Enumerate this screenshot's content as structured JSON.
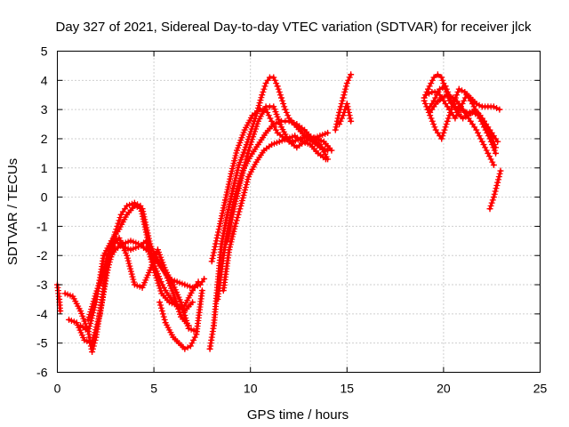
{
  "chart_data": {
    "type": "scatter",
    "title": "Day 327 of 2021, Sidereal Day-to-day VTEC variation (SDTVAR) for receiver jlck",
    "xlabel": "GPS time / hours",
    "ylabel": "SDTVAR / TECUs",
    "xlim": [
      0,
      25
    ],
    "ylim": [
      -6,
      5
    ],
    "xticks": [
      "0",
      "5",
      "10",
      "15",
      "20",
      "25"
    ],
    "yticks": [
      "-6",
      "-5",
      "-4",
      "-3",
      "-2",
      "-1",
      "0",
      "1",
      "2",
      "3",
      "4",
      "5"
    ],
    "grid": true,
    "marker": "plus",
    "color": "#ff0000",
    "series": [
      {
        "x": [
          0.0,
          0.1,
          0.15
        ],
        "y": [
          -3.0,
          -3.5,
          -3.9
        ]
      },
      {
        "x": [
          0.4,
          0.8,
          1.2,
          1.6,
          1.8,
          2.0,
          2.3,
          2.6,
          3.0,
          3.3,
          3.6,
          4.0,
          4.3,
          4.6,
          4.9,
          5.3,
          5.6,
          6.0,
          6.3,
          6.6,
          7.0,
          7.3
        ],
        "y": [
          -3.3,
          -3.4,
          -3.9,
          -4.6,
          -5.3,
          -4.8,
          -3.6,
          -2.2,
          -1.2,
          -0.6,
          -0.3,
          -0.2,
          -0.3,
          -1.2,
          -2.1,
          -2.8,
          -3.2,
          -3.6,
          -3.8,
          -3.7,
          -3.2,
          -2.9
        ]
      },
      {
        "x": [
          0.6,
          1.0,
          1.4,
          1.8,
          2.2,
          2.6,
          3.0,
          3.4,
          3.8,
          4.2,
          4.6,
          5.0,
          5.4,
          5.8,
          6.2,
          6.6,
          7.0
        ],
        "y": [
          -4.2,
          -4.3,
          -4.9,
          -5.0,
          -4.0,
          -2.5,
          -1.5,
          -1.7,
          -1.8,
          -1.7,
          -1.5,
          -2.5,
          -3.3,
          -3.6,
          -3.7,
          -3.9,
          -3.6
        ]
      },
      {
        "x": [
          1.2,
          1.6,
          2.0,
          2.4,
          2.8,
          3.2,
          3.6,
          4.0,
          4.4,
          4.8,
          5.2,
          5.6,
          6.0,
          6.4,
          6.8
        ],
        "y": [
          -4.4,
          -4.6,
          -3.6,
          -2.0,
          -1.5,
          -1.1,
          -0.6,
          -0.3,
          -0.4,
          -1.6,
          -2.2,
          -2.6,
          -3.3,
          -4.1,
          -4.4
        ]
      },
      {
        "x": [
          1.6,
          2.0,
          2.4,
          2.8,
          3.2,
          3.6,
          4.0,
          4.4,
          4.8,
          5.2,
          5.6,
          6.0,
          6.4,
          6.8,
          7.2
        ],
        "y": [
          -4.2,
          -3.3,
          -2.5,
          -1.6,
          -1.4,
          -2.0,
          -3.0,
          -3.1,
          -2.5,
          -1.8,
          -2.5,
          -3.0,
          -3.6,
          -4.5,
          -4.6
        ]
      },
      {
        "x": [
          2.2,
          2.6,
          3.0,
          3.4,
          3.8,
          4.2,
          4.6,
          5.0,
          5.4,
          5.8,
          6.2,
          6.6,
          7.0,
          7.4,
          7.6
        ],
        "y": [
          -3.0,
          -2.2,
          -1.8,
          -1.6,
          -1.5,
          -1.6,
          -1.8,
          -2.0,
          -2.4,
          -2.8,
          -2.9,
          -3.0,
          -3.1,
          -3.0,
          -2.8
        ]
      },
      {
        "x": [
          5.3,
          5.6,
          6.0,
          6.3,
          6.6,
          6.9,
          7.2,
          7.5
        ],
        "y": [
          -3.6,
          -4.3,
          -4.8,
          -5.0,
          -5.2,
          -5.1,
          -4.7,
          -3.2
        ]
      },
      {
        "x": [
          7.9,
          8.1,
          8.3,
          8.5,
          8.8,
          9.1,
          9.4,
          9.8,
          10.2,
          10.6,
          10.8,
          11.0,
          11.2,
          11.4,
          11.6,
          11.8,
          12.0,
          12.4,
          12.8,
          13.2,
          13.6,
          14.0
        ],
        "y": [
          -5.2,
          -4.4,
          -3.0,
          -1.6,
          -0.6,
          0.3,
          1.1,
          1.8,
          2.6,
          3.5,
          3.9,
          4.1,
          4.1,
          3.8,
          3.4,
          3.0,
          2.7,
          2.4,
          2.1,
          1.9,
          1.7,
          1.6
        ]
      },
      {
        "x": [
          8.0,
          8.2,
          8.4,
          8.7,
          9.0,
          9.3,
          9.7,
          10.1,
          10.5,
          10.8,
          11.1,
          11.4,
          11.8,
          12.2,
          12.6,
          13.0,
          13.4,
          13.8,
          14.2
        ],
        "y": [
          -2.2,
          -1.6,
          -1.0,
          -0.1,
          0.8,
          1.6,
          2.3,
          2.8,
          3.0,
          3.0,
          2.6,
          2.2,
          2.0,
          1.9,
          2.0,
          2.1,
          2.0,
          1.9,
          1.6
        ]
      },
      {
        "x": [
          8.3,
          8.6,
          8.9,
          9.2,
          9.6,
          10.0,
          10.4,
          10.8,
          11.2,
          11.6,
          12.0,
          12.4,
          12.8,
          13.2,
          13.6,
          14.0
        ],
        "y": [
          -3.5,
          -2.0,
          -0.9,
          0.0,
          0.9,
          1.4,
          1.8,
          2.2,
          2.5,
          2.6,
          2.6,
          2.5,
          2.3,
          2.0,
          1.8,
          1.3
        ]
      },
      {
        "x": [
          8.6,
          8.9,
          9.2,
          9.5,
          9.9,
          10.3,
          10.7,
          11.1,
          11.5,
          11.9,
          12.3,
          12.7,
          13.1,
          13.5,
          13.9
        ],
        "y": [
          -3.2,
          -1.8,
          -1.0,
          -0.3,
          0.7,
          1.2,
          1.6,
          1.8,
          1.9,
          2.0,
          2.1,
          1.9,
          1.8,
          1.5,
          1.3
        ]
      },
      {
        "x": [
          8.8,
          9.1,
          9.4,
          9.7,
          10.0,
          10.4,
          10.8,
          11.2,
          11.6,
          12.0,
          12.4,
          12.8,
          13.2,
          13.6,
          14.0
        ],
        "y": [
          -1.5,
          -0.5,
          0.3,
          1.1,
          1.8,
          2.6,
          3.1,
          3.1,
          2.4,
          1.9,
          1.7,
          1.9,
          2.0,
          2.1,
          2.2
        ]
      },
      {
        "x": [
          14.4,
          14.6,
          14.8,
          15.0,
          15.2
        ],
        "y": [
          2.3,
          2.9,
          3.4,
          3.9,
          4.2
        ]
      },
      {
        "x": [
          14.6,
          14.8,
          15.0,
          15.2
        ],
        "y": [
          2.5,
          2.8,
          3.2,
          2.6
        ]
      },
      {
        "x": [
          19.0,
          19.2,
          19.5,
          19.7,
          19.9,
          20.1,
          20.3,
          20.6,
          20.9,
          21.2,
          21.5,
          21.8,
          22.1,
          22.4,
          22.7
        ],
        "y": [
          3.4,
          3.7,
          4.1,
          4.2,
          4.1,
          3.7,
          3.3,
          3.1,
          3.0,
          2.9,
          2.9,
          2.8,
          2.6,
          2.2,
          1.7
        ]
      },
      {
        "x": [
          19.0,
          19.3,
          19.6,
          19.9,
          20.2,
          20.5,
          20.8,
          21.1,
          21.4,
          21.7,
          22.0,
          22.3,
          22.6,
          22.9
        ],
        "y": [
          3.3,
          2.8,
          2.3,
          2.0,
          2.6,
          3.2,
          3.7,
          3.6,
          3.4,
          3.2,
          3.1,
          3.1,
          3.1,
          3.0
        ]
      },
      {
        "x": [
          19.1,
          19.4,
          19.7,
          20.0,
          20.3,
          20.6,
          20.9,
          21.2,
          21.5,
          21.8,
          22.1,
          22.4,
          22.7
        ],
        "y": [
          3.5,
          3.6,
          3.6,
          3.3,
          3.0,
          2.7,
          3.1,
          3.5,
          3.2,
          2.8,
          2.4,
          2.0,
          1.5
        ]
      },
      {
        "x": [
          19.2,
          19.5,
          19.8,
          20.1,
          20.4,
          20.7,
          21.0,
          21.3,
          21.6,
          21.9,
          22.2,
          22.5,
          22.8
        ],
        "y": [
          3.0,
          3.3,
          3.7,
          3.8,
          3.3,
          2.9,
          2.7,
          2.8,
          3.0,
          2.8,
          2.5,
          2.2,
          1.9
        ]
      },
      {
        "x": [
          19.3,
          19.6,
          19.9,
          20.2,
          20.5,
          20.8,
          21.1,
          21.4,
          21.7,
          22.0,
          22.3,
          22.6
        ],
        "y": [
          2.9,
          3.2,
          3.4,
          3.5,
          3.4,
          3.2,
          2.9,
          2.6,
          2.3,
          1.9,
          1.5,
          1.1
        ]
      },
      {
        "x": [
          22.4,
          22.6,
          22.8,
          22.95
        ],
        "y": [
          -0.4,
          0.0,
          0.5,
          0.9
        ]
      }
    ]
  }
}
